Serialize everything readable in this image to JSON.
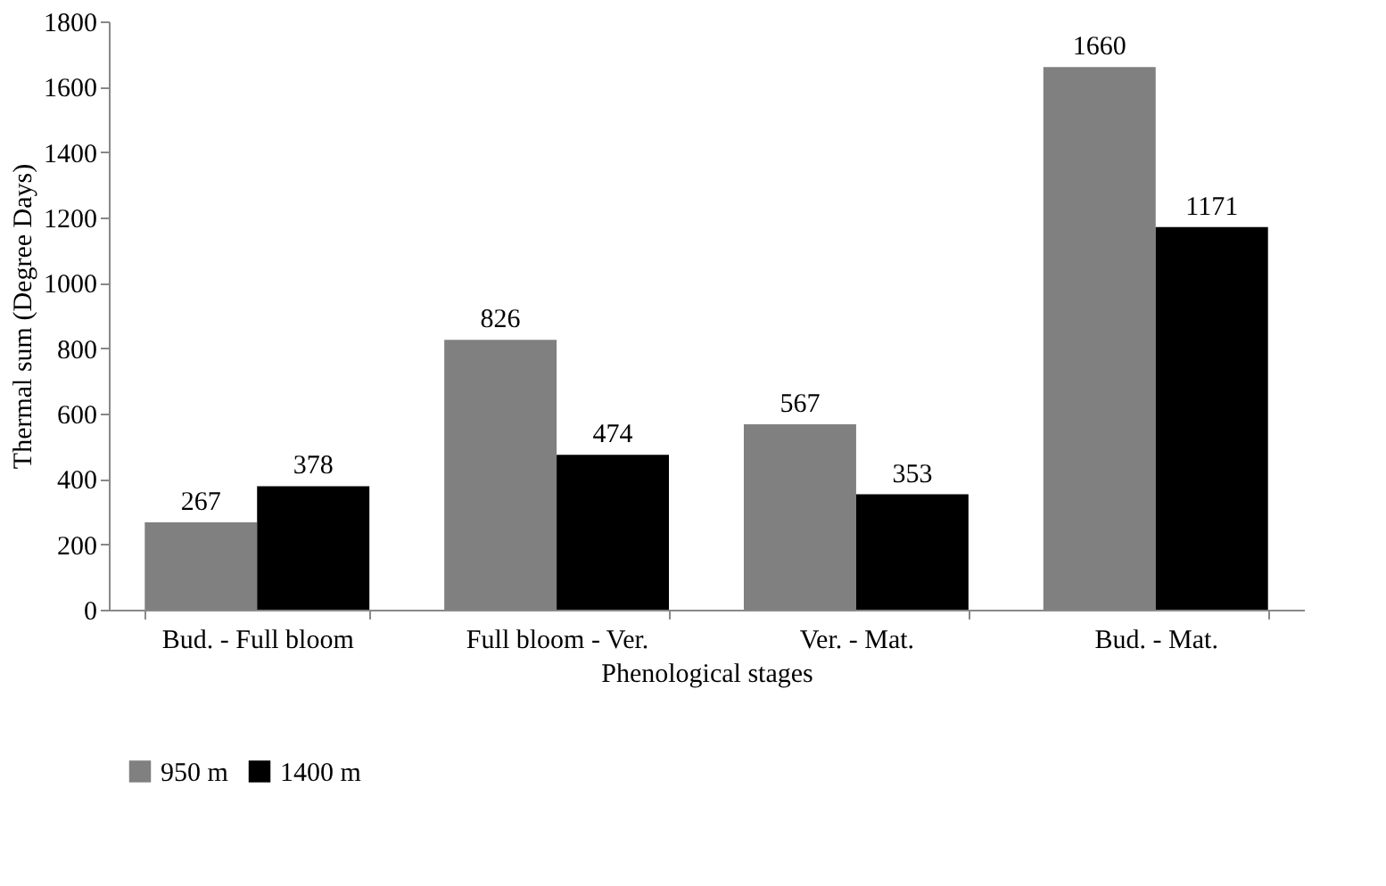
{
  "chart_data": {
    "type": "bar",
    "xlabel": "Phenological stages",
    "ylabel": "Thermal sum (Degree Days)",
    "categories": [
      "Bud. - Full bloom",
      "Full bloom - Ver.",
      "Ver. - Mat.",
      "Bud. - Mat."
    ],
    "series": [
      {
        "name": "950 m",
        "color": "#808080",
        "values": [
          267,
          826,
          567,
          1660
        ]
      },
      {
        "name": "1400 m",
        "color": "#000000",
        "values": [
          378,
          474,
          353,
          1171
        ]
      }
    ],
    "ylim": [
      0,
      1800
    ],
    "yticks": [
      0,
      200,
      400,
      600,
      800,
      1000,
      1200,
      1400,
      1600,
      1800
    ],
    "data_labels": true,
    "grid": false,
    "legend": "bottom"
  }
}
